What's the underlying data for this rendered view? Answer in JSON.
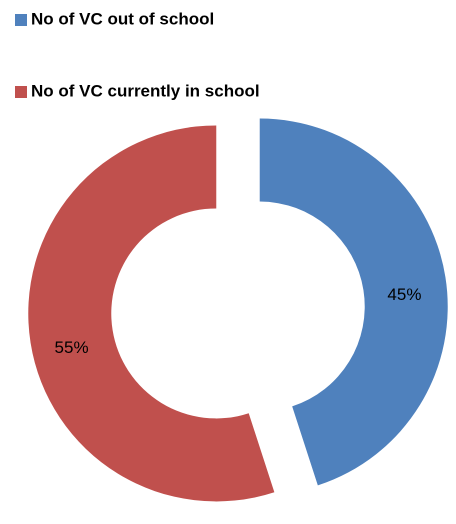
{
  "chart_data": {
    "type": "donut",
    "categories": [
      "No of VC out of school",
      "No of VC currently in school"
    ],
    "values": [
      45,
      55
    ],
    "value_labels": [
      "45%",
      "55%"
    ],
    "colors": [
      "#4f81bd",
      "#c0504d"
    ],
    "legend": "top-left"
  }
}
